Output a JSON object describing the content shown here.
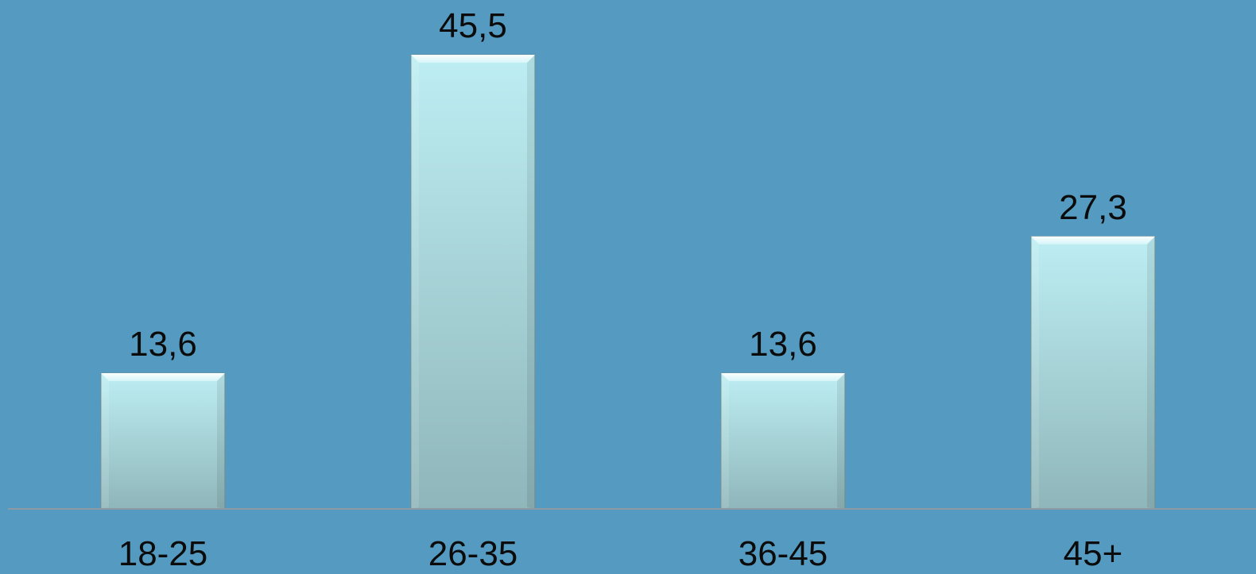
{
  "chart_data": {
    "type": "bar",
    "title": "",
    "xlabel": "",
    "ylabel": "",
    "categories": [
      "18-25",
      "26-35",
      "36-45",
      "45+"
    ],
    "values": [
      13.6,
      45.5,
      13.6,
      27.3
    ],
    "value_labels": [
      "13,6",
      "45,5",
      "13,6",
      "27,3"
    ],
    "ylim": [
      0,
      45.5
    ],
    "grid": false,
    "legend": "none",
    "colors": {
      "background": "#559bc1",
      "bar_top": "#bdeef3",
      "bar_bottom": "#8fb6ba",
      "baseline": "#8e9aa3"
    }
  }
}
